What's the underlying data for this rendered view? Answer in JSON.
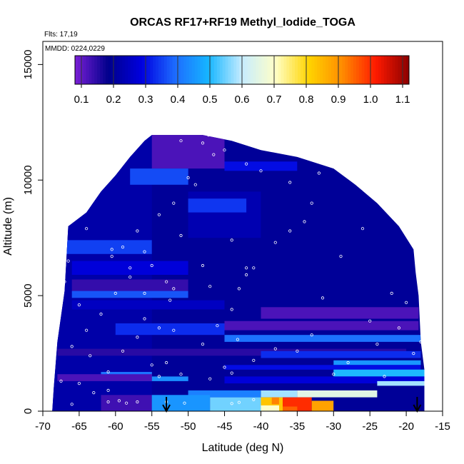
{
  "chart_data": {
    "type": "heatmap",
    "title": "ORCAS RF17+RF19 Methyl_Iodide_TOGA",
    "annotations": [
      "Flts: 17,19",
      "MMDD: 0224,0229"
    ],
    "xlabel": "Latitude (deg N)",
    "ylabel": "Altitude (m)",
    "xlim": [
      -70,
      -15
    ],
    "ylim": [
      0,
      16000
    ],
    "xticks": [
      -70,
      -65,
      -60,
      -55,
      -50,
      -45,
      -40,
      -35,
      -30,
      -25,
      -20,
      -15
    ],
    "yticks": [
      0,
      5000,
      10000,
      15000
    ],
    "colorbar": {
      "range": [
        0.08,
        1.12
      ],
      "ticks": [
        0.1,
        0.2,
        0.3,
        0.4,
        0.5,
        0.6,
        0.7,
        0.8,
        0.9,
        1.0,
        1.1
      ],
      "colors": [
        "#7a1fd6",
        "#00008b",
        "#0000e0",
        "#1d6cff",
        "#16b6ff",
        "#c6ecff",
        "#ffffc8",
        "#ffd400",
        "#ff8c00",
        "#ff1a00",
        "#8b0000"
      ],
      "placement": "top-inside"
    },
    "arrow_markers_latitude": [
      -53,
      -18.5
    ],
    "coverage_envelope": [
      {
        "lat": -68.7,
        "alt_top": 0
      },
      {
        "lat": -68.5,
        "alt_top": 1000
      },
      {
        "lat": -68,
        "alt_top": 3000
      },
      {
        "lat": -67,
        "alt_top": 5200
      },
      {
        "lat": -66.5,
        "alt_top": 8000
      },
      {
        "lat": -64,
        "alt_top": 8600
      },
      {
        "lat": -62,
        "alt_top": 9500
      },
      {
        "lat": -60,
        "alt_top": 10200
      },
      {
        "lat": -58,
        "alt_top": 11000
      },
      {
        "lat": -56,
        "alt_top": 11700
      },
      {
        "lat": -55,
        "alt_top": 11950
      },
      {
        "lat": -48,
        "alt_top": 11950
      },
      {
        "lat": -44,
        "alt_top": 11700
      },
      {
        "lat": -40,
        "alt_top": 11300
      },
      {
        "lat": -35,
        "alt_top": 11000
      },
      {
        "lat": -30,
        "alt_top": 10500
      },
      {
        "lat": -27,
        "alt_top": 9800
      },
      {
        "lat": -24,
        "alt_top": 9000
      },
      {
        "lat": -21,
        "alt_top": 8000
      },
      {
        "lat": -19,
        "alt_top": 7000
      },
      {
        "lat": -18.7,
        "alt_top": 6000
      },
      {
        "lat": -18.3,
        "alt_top": 5000
      },
      {
        "lat": -18,
        "alt_top": 3000
      },
      {
        "lat": -17.5,
        "alt_top": 1800
      },
      {
        "lat": -17.5,
        "alt_top": 0
      }
    ],
    "cells": [
      {
        "lat": [
          -70,
          -15
        ],
        "alt": [
          0,
          16000
        ],
        "value": 0.2
      },
      {
        "lat": [
          -70,
          -55
        ],
        "alt": [
          0,
          12000
        ],
        "value": 0.22
      },
      {
        "lat": [
          -55,
          -45
        ],
        "alt": [
          10500,
          12000
        ],
        "value": 0.12
      },
      {
        "lat": [
          -50,
          -40
        ],
        "alt": [
          7500,
          9500
        ],
        "value": 0.23
      },
      {
        "lat": [
          -67,
          -55
        ],
        "alt": [
          6800,
          7400
        ],
        "value": 0.35
      },
      {
        "lat": [
          -66,
          -50
        ],
        "alt": [
          5900,
          6500
        ],
        "value": 0.28
      },
      {
        "lat": [
          -66,
          -50
        ],
        "alt": [
          5200,
          5700
        ],
        "value": 0.14
      },
      {
        "lat": [
          -66,
          -50
        ],
        "alt": [
          4900,
          5200
        ],
        "value": 0.37
      },
      {
        "lat": [
          -66,
          -45
        ],
        "alt": [
          4400,
          4800
        ],
        "value": 0.25
      },
      {
        "lat": [
          -40,
          -18.3
        ],
        "alt": [
          4000,
          4500
        ],
        "value": 0.12
      },
      {
        "lat": [
          -60,
          -45
        ],
        "alt": [
          3300,
          3800
        ],
        "value": 0.33
      },
      {
        "lat": [
          -45,
          -18.3
        ],
        "alt": [
          3500,
          3900
        ],
        "value": 0.12
      },
      {
        "lat": [
          -45,
          -18
        ],
        "alt": [
          3000,
          3300
        ],
        "value": 0.4
      },
      {
        "lat": [
          -68,
          -20
        ],
        "alt": [
          2400,
          2700
        ],
        "value": 0.15
      },
      {
        "lat": [
          -40,
          -18
        ],
        "alt": [
          2300,
          2600
        ],
        "value": 0.33
      },
      {
        "lat": [
          -30,
          -18
        ],
        "alt": [
          2000,
          2200
        ],
        "value": 0.45
      },
      {
        "lat": [
          -45,
          -18
        ],
        "alt": [
          1800,
          2000
        ],
        "value": 0.3
      },
      {
        "lat": [
          -62,
          -55
        ],
        "alt": [
          1500,
          1700
        ],
        "value": 0.4
      },
      {
        "lat": [
          -30,
          -17.5
        ],
        "alt": [
          1500,
          1800
        ],
        "value": 0.5
      },
      {
        "lat": [
          -58,
          -50
        ],
        "alt": [
          1300,
          1500
        ],
        "value": 0.44
      },
      {
        "lat": [
          -45,
          -17.5
        ],
        "alt": [
          1200,
          1500
        ],
        "value": 0.28
      },
      {
        "lat": [
          -24,
          -17.5
        ],
        "alt": [
          1100,
          1300
        ],
        "value": 0.58
      },
      {
        "lat": [
          -68,
          -55
        ],
        "alt": [
          1300,
          1600
        ],
        "value": 0.12
      },
      {
        "lat": [
          -36,
          -17.5
        ],
        "alt": [
          800,
          1050
        ],
        "value": 0.2
      },
      {
        "lat": [
          -50,
          -40
        ],
        "alt": [
          600,
          900
        ],
        "value": 0.42
      },
      {
        "lat": [
          -40,
          -35
        ],
        "alt": [
          600,
          900
        ],
        "value": 0.58
      },
      {
        "lat": [
          -35,
          -24
        ],
        "alt": [
          600,
          900
        ],
        "value": 0.65
      },
      {
        "lat": [
          -62,
          -55
        ],
        "alt": [
          0,
          700
        ],
        "value": 0.13
      },
      {
        "lat": [
          -55,
          -47
        ],
        "alt": [
          0,
          700
        ],
        "value": 0.45
      },
      {
        "lat": [
          -47,
          -40
        ],
        "alt": [
          0,
          600
        ],
        "value": 0.55
      },
      {
        "lat": [
          -40,
          -37
        ],
        "alt": [
          0,
          600
        ],
        "value": 0.83
      },
      {
        "lat": [
          -38.5,
          -37.5
        ],
        "alt": [
          300,
          600
        ],
        "value": 0.92
      },
      {
        "lat": [
          -37,
          -33
        ],
        "alt": [
          0,
          600
        ],
        "value": 1.0
      },
      {
        "lat": [
          -33,
          -30
        ],
        "alt": [
          0,
          450
        ],
        "value": 0.88
      },
      {
        "lat": [
          -40,
          -37.5
        ],
        "alt": [
          0,
          250
        ],
        "value": 0.7
      },
      {
        "lat": [
          -37,
          -35
        ],
        "alt": [
          0,
          200
        ],
        "value": 0.95
      },
      {
        "lat": [
          -58,
          -50
        ],
        "alt": [
          9800,
          10500
        ],
        "value": 0.36
      },
      {
        "lat": [
          -50,
          -42
        ],
        "alt": [
          8600,
          9200
        ],
        "value": 0.34
      },
      {
        "lat": [
          -45,
          -35
        ],
        "alt": [
          10400,
          10800
        ],
        "value": 0.3
      }
    ],
    "sample_points": [
      [
        -61,
        400
      ],
      [
        -59.5,
        450
      ],
      [
        -58.5,
        350
      ],
      [
        -57,
        400
      ],
      [
        -53,
        400
      ],
      [
        -50.5,
        350
      ],
      [
        -44,
        330
      ],
      [
        -43,
        380
      ],
      [
        -41,
        500
      ],
      [
        -65,
        1200
      ],
      [
        -61,
        900
      ],
      [
        -54,
        1500
      ],
      [
        -51,
        1600
      ],
      [
        -47,
        1400
      ],
      [
        -45,
        1900
      ],
      [
        -44,
        1650
      ],
      [
        -43.2,
        3100
      ],
      [
        -66,
        2800
      ],
      [
        -63.5,
        2400
      ],
      [
        -57,
        3200
      ],
      [
        -55,
        2000
      ],
      [
        -54,
        3600
      ],
      [
        -46,
        3700
      ],
      [
        -35,
        2600
      ],
      [
        -64,
        3500
      ],
      [
        -60,
        5100
      ],
      [
        -58,
        6200
      ],
      [
        -56,
        6900
      ],
      [
        -53,
        5600
      ],
      [
        -52,
        5300
      ],
      [
        -52.5,
        4800
      ],
      [
        -50,
        10100
      ],
      [
        -51,
        11700
      ],
      [
        -47.2,
        11950
      ],
      [
        -46.5,
        11100
      ],
      [
        -49,
        9800
      ],
      [
        -52,
        9000
      ],
      [
        -54,
        8500
      ],
      [
        -57,
        7800
      ],
      [
        -59,
        7100
      ],
      [
        -60.5,
        7000
      ],
      [
        -60.5,
        6700
      ],
      [
        -58,
        5800
      ],
      [
        -48,
        6300
      ],
      [
        -47,
        5400
      ],
      [
        -44,
        4400
      ],
      [
        -38,
        7300
      ],
      [
        -36,
        7800
      ],
      [
        -33,
        9000
      ],
      [
        -34,
        8200
      ],
      [
        -31.5,
        4900
      ],
      [
        -29,
        6700
      ],
      [
        -25,
        3900
      ],
      [
        -21,
        3600
      ],
      [
        -19,
        2500
      ],
      [
        -18,
        3000
      ],
      [
        -23,
        1500
      ],
      [
        -28,
        2100
      ],
      [
        -30,
        1600
      ],
      [
        -41,
        6200
      ],
      [
        -42,
        6200
      ],
      [
        -43,
        5300
      ],
      [
        -44,
        7400
      ],
      [
        -51,
        7600
      ],
      [
        -55,
        6300
      ],
      [
        -64,
        7900
      ],
      [
        -66.5,
        6500
      ],
      [
        -67,
        5600
      ],
      [
        -65,
        4600
      ],
      [
        -62,
        4200
      ],
      [
        -56,
        4000
      ],
      [
        -52,
        3500
      ],
      [
        -48,
        2900
      ],
      [
        -42,
        5900
      ],
      [
        -45,
        11300
      ],
      [
        -48,
        11600
      ],
      [
        -42,
        10700
      ],
      [
        -40,
        10400
      ],
      [
        -36,
        9900
      ],
      [
        -32,
        10300
      ],
      [
        -26,
        7900
      ],
      [
        -22,
        5100
      ],
      [
        -20,
        4700
      ],
      [
        -24,
        2900
      ],
      [
        -33,
        3300
      ],
      [
        -38,
        2700
      ],
      [
        -41,
        2200
      ],
      [
        -53,
        2100
      ],
      [
        -59,
        2600
      ],
      [
        -61,
        1700
      ],
      [
        -63,
        800
      ],
      [
        -66,
        300
      ],
      [
        -67.5,
        1300
      ],
      [
        -56,
        5100
      ]
    ]
  }
}
